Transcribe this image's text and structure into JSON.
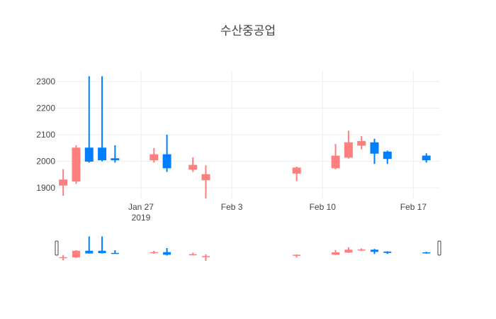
{
  "chart_data": {
    "type": "candlestick",
    "title": "수산중공업",
    "xlabel": "",
    "ylabel": "",
    "ylim": [
      1860,
      2340
    ],
    "xlim": [
      "2019-01-21",
      "2019-02-19"
    ],
    "grid": true,
    "legend": "none",
    "y_ticks": [
      "1900",
      "2000",
      "2100",
      "2200",
      "2300"
    ],
    "x_ticks": [
      {
        "date": "2019-01-27",
        "label": "Jan 27",
        "sub": "2019"
      },
      {
        "date": "2019-02-03",
        "label": "Feb 3",
        "sub": ""
      },
      {
        "date": "2019-02-10",
        "label": "Feb 10",
        "sub": ""
      },
      {
        "date": "2019-02-17",
        "label": "Feb 17",
        "sub": ""
      }
    ],
    "colors": {
      "increasing": "#ff7f7f",
      "decreasing": "#0080ff"
    },
    "candles": [
      {
        "date": "2019-01-21",
        "open": 1910,
        "high": 1970,
        "low": 1870,
        "close": 1930
      },
      {
        "date": "2019-01-22",
        "open": 1925,
        "high": 2060,
        "low": 1915,
        "close": 2050
      },
      {
        "date": "2019-01-23",
        "open": 2050,
        "high": 2320,
        "low": 1995,
        "close": 2000
      },
      {
        "date": "2019-01-24",
        "open": 2050,
        "high": 2320,
        "low": 2000,
        "close": 2005
      },
      {
        "date": "2019-01-25",
        "open": 2010,
        "high": 2060,
        "low": 1995,
        "close": 2005
      },
      {
        "date": "2019-01-28",
        "open": 2005,
        "high": 2050,
        "low": 1995,
        "close": 2025
      },
      {
        "date": "2019-01-29",
        "open": 2025,
        "high": 2100,
        "low": 1960,
        "close": 1975
      },
      {
        "date": "2019-01-31",
        "open": 1970,
        "high": 2015,
        "low": 1960,
        "close": 1985
      },
      {
        "date": "2019-02-01",
        "open": 1930,
        "high": 1985,
        "low": 1860,
        "close": 1950
      },
      {
        "date": "2019-02-08",
        "open": 1955,
        "high": 1980,
        "low": 1925,
        "close": 1975
      },
      {
        "date": "2019-02-11",
        "open": 1975,
        "high": 2065,
        "low": 1970,
        "close": 2020
      },
      {
        "date": "2019-02-12",
        "open": 2015,
        "high": 2115,
        "low": 2010,
        "close": 2070
      },
      {
        "date": "2019-02-13",
        "open": 2060,
        "high": 2095,
        "low": 2045,
        "close": 2075
      },
      {
        "date": "2019-02-14",
        "open": 2070,
        "high": 2085,
        "low": 1990,
        "close": 2030
      },
      {
        "date": "2019-02-15",
        "open": 2035,
        "high": 2040,
        "low": 1990,
        "close": 2010
      },
      {
        "date": "2019-02-18",
        "open": 2020,
        "high": 2030,
        "low": 1995,
        "close": 2005
      }
    ],
    "range_slider": {
      "visible": true
    }
  }
}
